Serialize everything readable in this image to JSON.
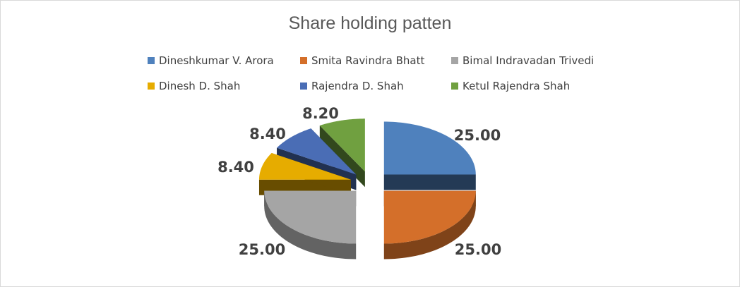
{
  "chart_data": {
    "type": "pie",
    "title": "Share holding patten",
    "legend_position": "top",
    "categories": [
      "Dineshkumar V. Arora",
      "Smita Ravindra Bhatt",
      "Bimal Indravadan Trivedi",
      "Dinesh D. Shah",
      "Rajendra D. Shah",
      "Ketul Rajendra Shah"
    ],
    "values": [
      25.0,
      25.0,
      25.0,
      8.4,
      8.4,
      8.2
    ],
    "data_labels": [
      "25.00",
      "25.00",
      "25.00",
      "8.40",
      "8.40",
      "8.20"
    ],
    "colors": [
      "#4f81bd",
      "#d46f2a",
      "#a5a5a5",
      "#e6ac00",
      "#4a6db5",
      "#70a040"
    ]
  }
}
